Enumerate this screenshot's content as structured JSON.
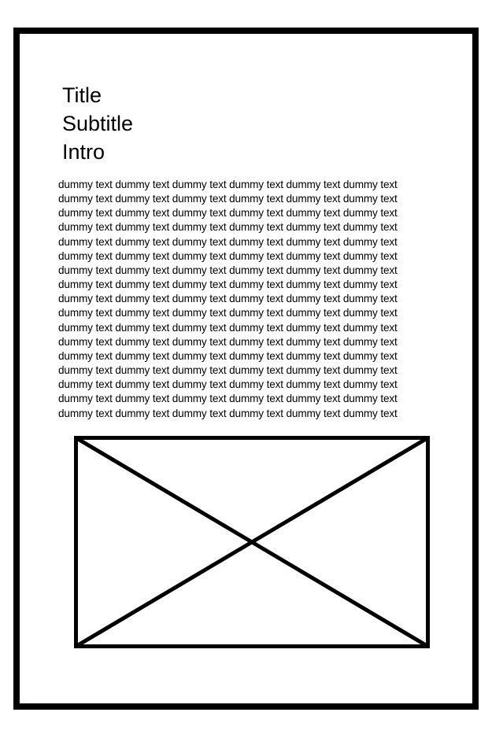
{
  "heading": {
    "title": "Title",
    "subtitle": "Subtitle",
    "intro": "Intro"
  },
  "body": {
    "lines": [
      "dummy text dummy text dummy text dummy text dummy text dummy text",
      "dummy text dummy text dummy text dummy text dummy text dummy text",
      "dummy text dummy text dummy text dummy text dummy text dummy text",
      "dummy text dummy text dummy text dummy text dummy text dummy text",
      "dummy text dummy text dummy text dummy text dummy text dummy text",
      "dummy text dummy text dummy text dummy text dummy text dummy text",
      "dummy text dummy text dummy text dummy text dummy text dummy text",
      "dummy text dummy text dummy text dummy text dummy text dummy text",
      "dummy text dummy text dummy text dummy text dummy text dummy text",
      "dummy text dummy text dummy text dummy text dummy text dummy text",
      "dummy text dummy text dummy text dummy text dummy text dummy text",
      "dummy text dummy text dummy text dummy text dummy text dummy text",
      "dummy text dummy text dummy text dummy text dummy text dummy text",
      "dummy text dummy text dummy text dummy text dummy text dummy text",
      "dummy text dummy text dummy text dummy text dummy text dummy text",
      "dummy text dummy text dummy text dummy text dummy text dummy text",
      "dummy text dummy text dummy text dummy text dummy text dummy text"
    ]
  },
  "image": {
    "icon": "image-placeholder-icon"
  },
  "colors": {
    "stroke": "#000000",
    "background": "#ffffff"
  }
}
